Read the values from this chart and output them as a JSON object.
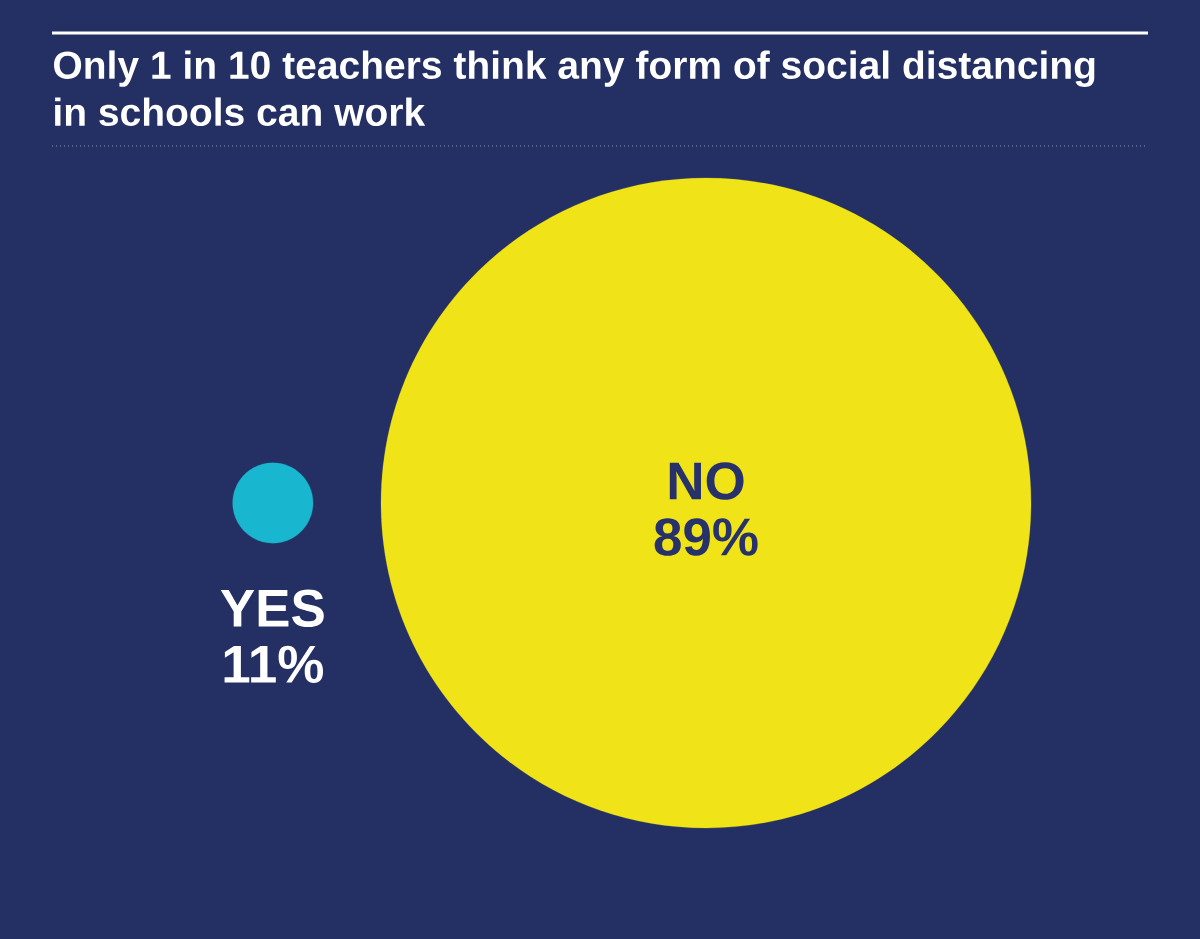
{
  "chart_data": {
    "type": "other",
    "title": "Only 1 in 10 teachers think any form of social distancing in schools can work",
    "categories": [
      "YES",
      "NO"
    ],
    "values": [
      11,
      89
    ],
    "colors": [
      "#19b6d0",
      "#f0e418"
    ],
    "value_labels": [
      "11%",
      "89%"
    ]
  }
}
